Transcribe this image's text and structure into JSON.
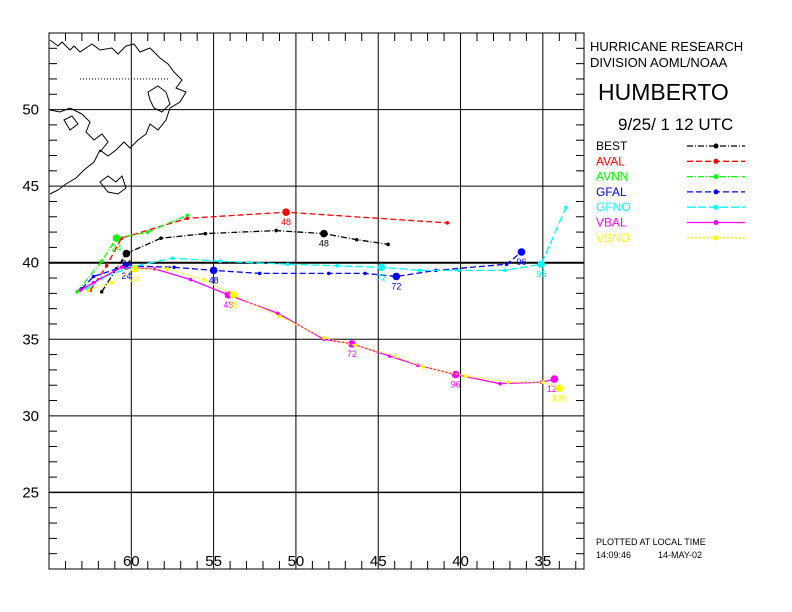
{
  "header": {
    "org_line1": "HURRICANE RESEARCH",
    "org_line2": "DIVISION AOML/NOAA",
    "storm_name": "HUMBERTO",
    "init_time": "9/25/ 1 12 UTC"
  },
  "footer": {
    "plotted_note": "PLOTTED AT LOCAL TIME",
    "time": "14:09:46",
    "date": "14-MAY-02"
  },
  "chart_data": {
    "type": "line",
    "title": "HUMBERTO",
    "xlabel": "",
    "ylabel": "",
    "x_axis": "longitude (deg W), decreasing to the right",
    "xlim": [
      65,
      32.5
    ],
    "ylim": [
      20,
      55
    ],
    "x_ticks": [
      60,
      55,
      50,
      45,
      40,
      35
    ],
    "y_ticks": [
      50,
      45,
      40,
      35,
      30,
      25
    ],
    "grid": true,
    "legend_position": "right",
    "series": [
      {
        "name": "BEST",
        "color": "#000000",
        "dash": "6,2,1,2",
        "points": [
          [
            61.8,
            38.1
          ],
          [
            60.9,
            39.6
          ],
          [
            60.3,
            40.6
          ],
          [
            58.2,
            41.6
          ],
          [
            55.5,
            41.9
          ],
          [
            51.2,
            42.1
          ],
          [
            48.3,
            41.9
          ],
          [
            46.3,
            41.5
          ],
          [
            44.4,
            41.2
          ]
        ],
        "labels": [
          {
            "i": 2,
            "text": "24"
          },
          {
            "i": 6,
            "text": "48"
          }
        ]
      },
      {
        "name": "AVAL",
        "color": "#ff0000",
        "dash": "6,3",
        "points": [
          [
            62.5,
            38.2
          ],
          [
            61.5,
            39.8
          ],
          [
            60.6,
            41.6
          ],
          [
            56.6,
            42.9
          ],
          [
            50.6,
            43.3
          ],
          [
            40.8,
            42.6
          ]
        ],
        "labels": [
          {
            "i": 4,
            "text": "48"
          }
        ]
      },
      {
        "name": "AVNN",
        "color": "#00ff00",
        "dash": "6,2,1,2",
        "points": [
          [
            63.3,
            38.1
          ],
          [
            61.8,
            40.1
          ],
          [
            60.9,
            41.6
          ],
          [
            59.0,
            42.0
          ],
          [
            56.6,
            43.1
          ]
        ],
        "labels": [
          {
            "i": 2,
            "text": "24"
          }
        ]
      },
      {
        "name": "GFAL",
        "color": "#0000ff",
        "dash": "6,3",
        "points": [
          [
            63.0,
            38.3
          ],
          [
            62.3,
            39.1
          ],
          [
            60.3,
            39.8
          ],
          [
            57.4,
            39.7
          ],
          [
            55.0,
            39.5
          ],
          [
            52.2,
            39.3
          ],
          [
            48.0,
            39.3
          ],
          [
            45.8,
            39.3
          ],
          [
            43.9,
            39.1
          ],
          [
            41.5,
            39.5
          ],
          [
            37.2,
            39.9
          ],
          [
            36.3,
            40.7
          ]
        ],
        "labels": [
          {
            "i": 2,
            "text": "24"
          },
          {
            "i": 4,
            "text": "48"
          },
          {
            "i": 8,
            "text": "72"
          },
          {
            "i": 11,
            "text": "96"
          }
        ]
      },
      {
        "name": "GFNO",
        "color": "#00ffff",
        "dash": "8,3",
        "points": [
          [
            62.7,
            38.3
          ],
          [
            61.8,
            39.0
          ],
          [
            60.1,
            39.7
          ],
          [
            57.5,
            40.3
          ],
          [
            54.6,
            40.1
          ],
          [
            50.5,
            39.9
          ],
          [
            47.5,
            39.8
          ],
          [
            44.8,
            39.7
          ],
          [
            42.5,
            39.5
          ],
          [
            40.1,
            39.5
          ],
          [
            37.3,
            39.5
          ],
          [
            35.1,
            39.9
          ],
          [
            33.6,
            43.6
          ]
        ],
        "labels": [
          {
            "i": 7,
            "text": "72"
          },
          {
            "i": 11,
            "text": "96"
          }
        ]
      },
      {
        "name": "VBAL",
        "color": "#ff00ff",
        "dash": "",
        "points": [
          [
            63.1,
            38.2
          ],
          [
            62.3,
            38.7
          ],
          [
            60.6,
            39.7
          ],
          [
            58.6,
            39.6
          ],
          [
            56.4,
            38.9
          ],
          [
            54.1,
            37.9
          ],
          [
            51.1,
            36.7
          ],
          [
            48.3,
            35.0
          ],
          [
            46.6,
            34.7
          ],
          [
            44.3,
            33.9
          ],
          [
            42.6,
            33.3
          ],
          [
            40.3,
            32.7
          ],
          [
            37.6,
            32.1
          ],
          [
            35.1,
            32.2
          ],
          [
            34.3,
            32.4
          ]
        ],
        "labels": [
          {
            "i": 5,
            "text": "48"
          },
          {
            "i": 8,
            "text": "72"
          },
          {
            "i": 11,
            "text": "96"
          },
          {
            "i": 14,
            "text": "120"
          }
        ]
      },
      {
        "name": "VBNO",
        "color": "#ffff00",
        "dash": "2,2",
        "points": [
          [
            62.6,
            38.2
          ],
          [
            61.2,
            38.7
          ],
          [
            59.8,
            39.6
          ],
          [
            57.8,
            39.6
          ],
          [
            55.6,
            38.9
          ],
          [
            53.8,
            37.9
          ],
          [
            51.0,
            36.5
          ],
          [
            48.3,
            35.1
          ],
          [
            46.4,
            34.6
          ],
          [
            44.0,
            33.9
          ],
          [
            42.3,
            33.2
          ],
          [
            39.7,
            32.6
          ],
          [
            37.1,
            32.2
          ],
          [
            35.0,
            32.2
          ],
          [
            34.0,
            31.8
          ]
        ],
        "labels": [
          {
            "i": 2,
            "text": "24"
          },
          {
            "i": 5,
            "text": "48"
          },
          {
            "i": 14,
            "text": "120"
          }
        ]
      }
    ]
  }
}
